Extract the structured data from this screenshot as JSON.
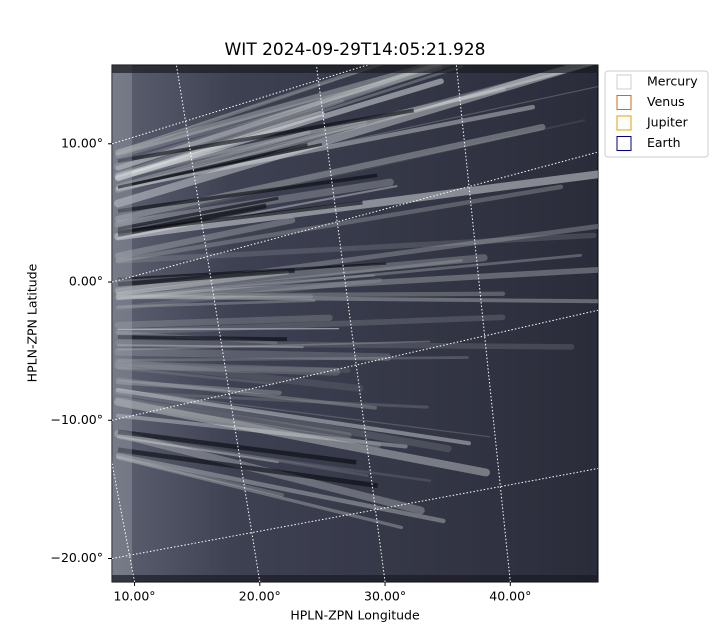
{
  "chart_data": {
    "type": "image",
    "title": "WIT 2024-09-29T14:05:21.928",
    "x_label": "HPLN-ZPN Longitude",
    "y_label": "HPLN-ZPN Latitude",
    "xlim": [
      8.2,
      47.0
    ],
    "ylim": [
      -21.7,
      15.7
    ],
    "xticks": [
      {
        "value": 10,
        "label": "10.00°"
      },
      {
        "value": 20,
        "label": "20.00°"
      },
      {
        "value": 30,
        "label": "30.00°"
      },
      {
        "value": 40,
        "label": "40.00°"
      }
    ],
    "yticks": [
      {
        "value": 10,
        "label": "10.00°"
      },
      {
        "value": 0,
        "label": "0.00°"
      },
      {
        "value": -10,
        "label": "−10.00°"
      },
      {
        "value": -20,
        "label": "−20.00°"
      }
    ],
    "grid": true,
    "legend_position": "upper right",
    "legend": [
      {
        "name": "Mercury",
        "color": "#cccccc"
      },
      {
        "name": "Venus",
        "color": "#d2691e"
      },
      {
        "name": "Jupiter",
        "color": "#e0a000"
      },
      {
        "name": "Earth",
        "color": "#000080"
      }
    ]
  }
}
